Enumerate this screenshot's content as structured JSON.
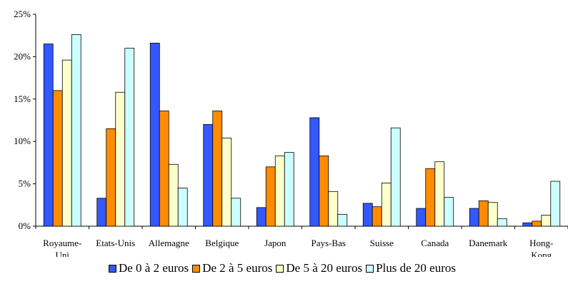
{
  "chart_data": {
    "type": "bar",
    "categories": [
      [
        "Royaume-",
        "Uni"
      ],
      [
        "Etats-Unis"
      ],
      [
        "Allemagne"
      ],
      [
        "Belgique"
      ],
      [
        "Japon"
      ],
      [
        "Pays-Bas"
      ],
      [
        "Suisse"
      ],
      [
        "Canada"
      ],
      [
        "Danemark"
      ],
      [
        "Hong-",
        "Kong"
      ]
    ],
    "series": [
      {
        "name": "De 0 à 2 euros",
        "color": "#3358FF",
        "values": [
          21.5,
          3.3,
          21.6,
          12.0,
          2.2,
          12.8,
          2.7,
          2.1,
          2.1,
          0.4
        ]
      },
      {
        "name": "De 2 à 5 euros",
        "color": "#FF8C00",
        "values": [
          16.0,
          11.5,
          13.6,
          13.6,
          7.0,
          8.3,
          2.3,
          6.8,
          3.0,
          0.6
        ]
      },
      {
        "name": "De 5 à 20 euros",
        "color": "#FFFFCC",
        "values": [
          19.6,
          15.8,
          7.3,
          10.4,
          8.3,
          4.1,
          5.1,
          7.6,
          2.8,
          1.3
        ]
      },
      {
        "name": "Plus de 20 euros",
        "color": "#CCFFFF",
        "values": [
          22.6,
          21.0,
          4.5,
          3.3,
          8.7,
          1.4,
          11.6,
          3.4,
          0.9,
          5.3
        ]
      }
    ],
    "y_ticks": [
      "0%",
      "5%",
      "10%",
      "15%",
      "20%",
      "25%"
    ],
    "ylim": [
      0,
      25
    ],
    "grid": false,
    "legend_position": "bottom"
  }
}
